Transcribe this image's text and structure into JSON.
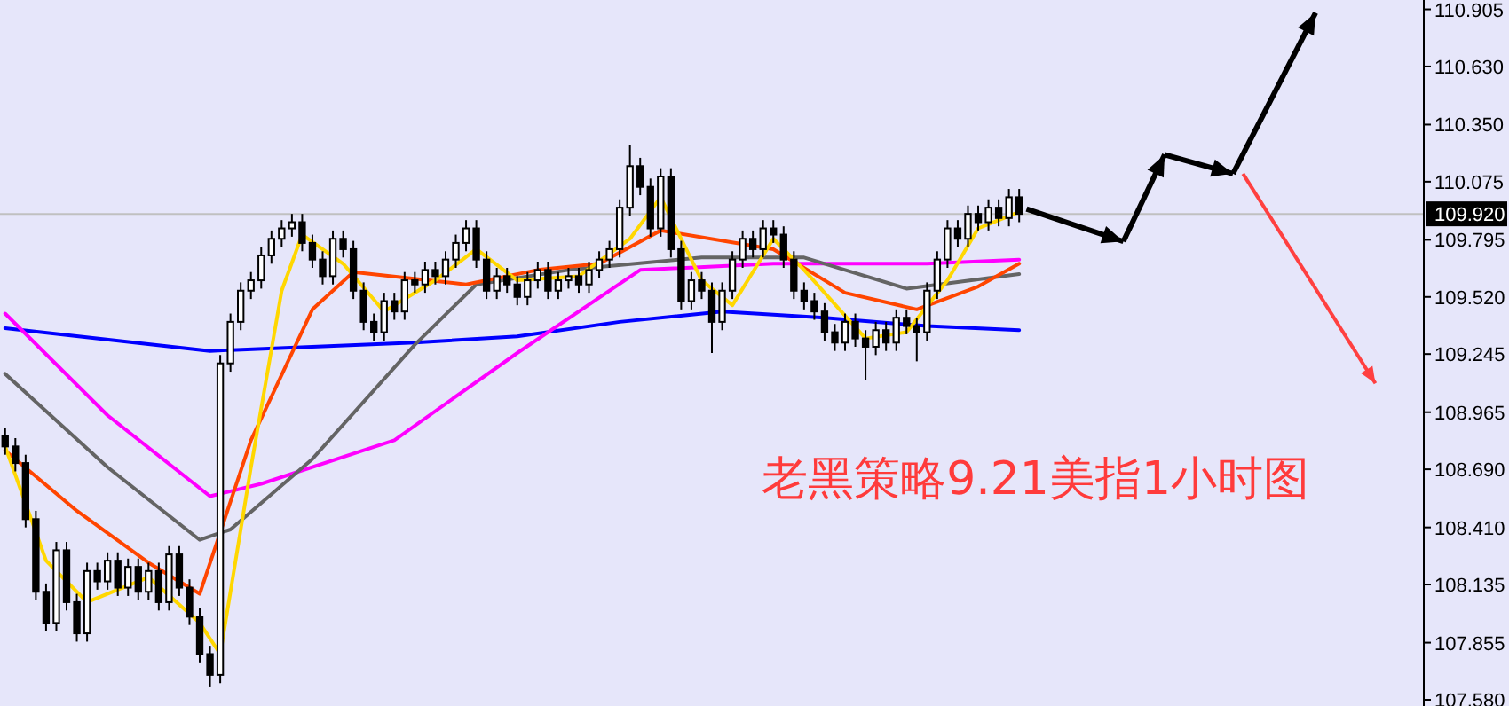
{
  "chart_data": {
    "type": "candlestick",
    "categories": [
      null,
      null,
      null,
      null,
      null,
      null,
      null,
      null,
      null,
      null,
      null,
      null,
      null,
      null,
      null,
      null,
      null,
      null,
      null,
      null,
      null,
      null,
      null,
      null,
      null,
      null,
      null,
      null,
      null,
      null,
      null,
      null,
      null,
      null,
      null,
      null,
      null,
      null,
      null,
      null,
      null,
      null,
      null,
      null,
      null,
      null,
      null,
      null,
      null,
      null,
      null,
      null,
      null,
      null,
      null,
      null,
      null,
      null,
      null,
      null,
      null,
      null,
      null,
      null,
      null,
      null,
      null,
      null,
      null,
      null,
      null,
      null,
      null,
      null,
      null,
      null,
      null,
      null,
      null,
      null,
      null,
      null,
      null,
      null,
      null,
      null,
      null,
      null,
      null,
      null,
      null,
      null,
      null,
      null,
      null,
      null,
      null,
      null,
      null,
      null,
      null,
      null,
      null,
      null,
      null,
      null,
      null,
      null,
      null,
      null,
      null,
      null,
      null,
      null,
      null,
      null,
      null,
      null,
      null,
      null,
      null,
      null,
      null,
      null,
      null,
      null,
      null,
      null,
      null,
      null,
      null,
      null,
      null,
      null,
      null,
      null,
      null,
      null,
      null
    ],
    "ohlc": [
      [
        108.85,
        108.89,
        108.76,
        108.8
      ],
      [
        108.8,
        108.84,
        108.68,
        108.72
      ],
      [
        108.72,
        108.76,
        108.41,
        108.45
      ],
      [
        108.45,
        108.49,
        108.06,
        108.1
      ],
      [
        108.1,
        108.14,
        107.91,
        107.95
      ],
      [
        107.95,
        108.34,
        107.91,
        108.3
      ],
      [
        108.3,
        108.34,
        108.01,
        108.05
      ],
      [
        108.05,
        108.09,
        107.86,
        107.9
      ],
      [
        107.9,
        108.24,
        107.86,
        108.2
      ],
      [
        108.2,
        108.24,
        108.11,
        108.15
      ],
      [
        108.15,
        108.29,
        108.11,
        108.25
      ],
      [
        108.25,
        108.29,
        108.08,
        108.12
      ],
      [
        108.12,
        108.26,
        108.08,
        108.22
      ],
      [
        108.22,
        108.26,
        108.06,
        108.1
      ],
      [
        108.1,
        108.24,
        108.06,
        108.2
      ],
      [
        108.2,
        108.24,
        108.01,
        108.05
      ],
      [
        108.05,
        108.32,
        108.01,
        108.28
      ],
      [
        108.28,
        108.32,
        108.08,
        108.12
      ],
      [
        108.12,
        108.16,
        107.94,
        107.98
      ],
      [
        107.98,
        108.02,
        107.76,
        107.8
      ],
      [
        107.8,
        107.84,
        107.64,
        107.7
      ],
      [
        107.7,
        109.24,
        107.66,
        109.2
      ],
      [
        109.2,
        109.44,
        109.16,
        109.4
      ],
      [
        109.4,
        109.59,
        109.36,
        109.55
      ],
      [
        109.55,
        109.64,
        109.51,
        109.6
      ],
      [
        109.6,
        109.76,
        109.56,
        109.72
      ],
      [
        109.72,
        109.84,
        109.68,
        109.8
      ],
      [
        109.8,
        109.89,
        109.76,
        109.85
      ],
      [
        109.85,
        109.92,
        109.81,
        109.88
      ],
      [
        109.88,
        109.92,
        109.74,
        109.78
      ],
      [
        109.78,
        109.82,
        109.66,
        109.7
      ],
      [
        109.7,
        109.74,
        109.58,
        109.62
      ],
      [
        109.62,
        109.84,
        109.58,
        109.8
      ],
      [
        109.8,
        109.84,
        109.71,
        109.75
      ],
      [
        109.75,
        109.79,
        109.51,
        109.55
      ],
      [
        109.55,
        109.59,
        109.36,
        109.4
      ],
      [
        109.4,
        109.44,
        109.31,
        109.35
      ],
      [
        109.35,
        109.54,
        109.31,
        109.5
      ],
      [
        109.5,
        109.54,
        109.41,
        109.45
      ],
      [
        109.45,
        109.64,
        109.41,
        109.6
      ],
      [
        109.6,
        109.64,
        109.54,
        109.58
      ],
      [
        109.58,
        109.69,
        109.54,
        109.65
      ],
      [
        109.65,
        109.69,
        109.58,
        109.62
      ],
      [
        109.62,
        109.74,
        109.58,
        109.7
      ],
      [
        109.7,
        109.82,
        109.66,
        109.78
      ],
      [
        109.78,
        109.89,
        109.74,
        109.85
      ],
      [
        109.85,
        109.89,
        109.66,
        109.7
      ],
      [
        109.7,
        109.74,
        109.51,
        109.55
      ],
      [
        109.55,
        109.66,
        109.51,
        109.62
      ],
      [
        109.62,
        109.66,
        109.54,
        109.58
      ],
      [
        109.58,
        109.62,
        109.48,
        109.52
      ],
      [
        109.52,
        109.64,
        109.48,
        109.6
      ],
      [
        109.6,
        109.69,
        109.56,
        109.65
      ],
      [
        109.65,
        109.69,
        109.51,
        109.55
      ],
      [
        109.55,
        109.64,
        109.51,
        109.6
      ],
      [
        109.6,
        109.66,
        109.56,
        109.62
      ],
      [
        109.62,
        109.66,
        109.54,
        109.58
      ],
      [
        109.58,
        109.69,
        109.54,
        109.65
      ],
      [
        109.65,
        109.74,
        109.61,
        109.7
      ],
      [
        109.7,
        109.79,
        109.66,
        109.75
      ],
      [
        109.75,
        109.99,
        109.71,
        109.95
      ],
      [
        109.95,
        110.25,
        109.91,
        110.15
      ],
      [
        110.15,
        110.19,
        110.01,
        110.05
      ],
      [
        110.05,
        110.09,
        109.81,
        109.85
      ],
      [
        109.85,
        110.14,
        109.81,
        110.1
      ],
      [
        110.1,
        110.14,
        109.71,
        109.75
      ],
      [
        109.75,
        109.79,
        109.46,
        109.5
      ],
      [
        109.5,
        109.64,
        109.46,
        109.6
      ],
      [
        109.6,
        109.64,
        109.51,
        109.55
      ],
      [
        109.55,
        109.59,
        109.25,
        109.4
      ],
      [
        109.4,
        109.59,
        109.36,
        109.55
      ],
      [
        109.55,
        109.74,
        109.51,
        109.7
      ],
      [
        109.7,
        109.84,
        109.66,
        109.8
      ],
      [
        109.8,
        109.84,
        109.71,
        109.75
      ],
      [
        109.75,
        109.89,
        109.71,
        109.85
      ],
      [
        109.85,
        109.89,
        109.78,
        109.82
      ],
      [
        109.82,
        109.86,
        109.66,
        109.7
      ],
      [
        109.7,
        109.74,
        109.51,
        109.55
      ],
      [
        109.55,
        109.59,
        109.46,
        109.5
      ],
      [
        109.5,
        109.54,
        109.41,
        109.45
      ],
      [
        109.45,
        109.49,
        109.31,
        109.35
      ],
      [
        109.35,
        109.39,
        109.26,
        109.3
      ],
      [
        109.3,
        109.44,
        109.26,
        109.4
      ],
      [
        109.4,
        109.44,
        109.28,
        109.32
      ],
      [
        109.32,
        109.36,
        109.12,
        109.28
      ],
      [
        109.28,
        109.4,
        109.24,
        109.36
      ],
      [
        109.36,
        109.4,
        109.26,
        109.3
      ],
      [
        109.3,
        109.46,
        109.26,
        109.42
      ],
      [
        109.42,
        109.46,
        109.34,
        109.38
      ],
      [
        109.38,
        109.42,
        109.21,
        109.35
      ],
      [
        109.35,
        109.59,
        109.31,
        109.55
      ],
      [
        109.55,
        109.74,
        109.51,
        109.7
      ],
      [
        109.7,
        109.89,
        109.66,
        109.85
      ],
      [
        109.85,
        109.89,
        109.76,
        109.8
      ],
      [
        109.8,
        109.96,
        109.76,
        109.92
      ],
      [
        109.92,
        109.96,
        109.84,
        109.88
      ],
      [
        109.88,
        109.99,
        109.84,
        109.95
      ],
      [
        109.95,
        109.99,
        109.86,
        109.9
      ],
      [
        109.9,
        110.04,
        109.86,
        110.0
      ],
      [
        110.0,
        110.04,
        109.88,
        109.92
      ],
      null,
      null,
      null,
      null,
      null,
      null,
      null,
      null,
      null,
      null,
      null,
      null,
      null,
      null,
      null,
      null,
      null,
      null,
      null,
      null,
      null,
      null,
      null,
      null,
      null,
      null,
      null,
      null,
      null,
      null,
      null,
      null,
      null,
      null,
      null,
      null,
      null,
      null,
      null
    ],
    "series": [
      {
        "type": "line",
        "color": "#0000ff",
        "values": [
          109.37,
          null,
          null,
          null,
          null,
          null,
          null,
          null,
          null,
          null,
          null,
          null,
          null,
          null,
          null,
          null,
          null,
          null,
          null,
          null,
          109.26,
          null,
          null,
          null,
          null,
          null,
          null,
          null,
          null,
          null,
          null,
          null,
          null,
          null,
          null,
          null,
          null,
          null,
          null,
          null,
          109.3,
          null,
          null,
          null,
          null,
          null,
          null,
          null,
          null,
          null,
          109.33,
          null,
          null,
          null,
          null,
          null,
          null,
          null,
          null,
          null,
          109.4,
          null,
          null,
          null,
          null,
          null,
          null,
          null,
          null,
          null,
          109.45,
          null,
          null,
          null,
          null,
          null,
          null,
          null,
          null,
          null,
          109.42,
          null,
          null,
          null,
          null,
          null,
          null,
          null,
          null,
          null,
          109.38,
          null,
          null,
          null,
          null,
          null,
          null,
          null,
          null,
          109.36,
          null,
          null,
          null,
          null,
          null,
          null,
          null,
          null,
          null,
          null,
          null,
          null,
          null,
          null,
          null,
          null,
          null,
          null,
          null,
          null,
          null,
          null,
          null,
          null,
          null,
          null,
          null,
          null,
          null,
          null,
          null,
          null,
          null,
          null,
          null,
          null,
          null,
          null,
          null
        ]
      },
      {
        "type": "line",
        "color": "#ff00ff",
        "values": [
          109.44,
          null,
          null,
          null,
          null,
          null,
          null,
          null,
          null,
          null,
          108.95,
          null,
          null,
          null,
          null,
          null,
          null,
          null,
          null,
          null,
          108.56,
          null,
          null,
          null,
          null,
          108.62,
          null,
          null,
          null,
          null,
          null,
          null,
          null,
          null,
          null,
          null,
          null,
          null,
          108.83,
          null,
          null,
          null,
          null,
          null,
          null,
          null,
          null,
          null,
          null,
          null,
          109.25,
          null,
          null,
          null,
          null,
          null,
          null,
          null,
          null,
          null,
          null,
          null,
          109.65,
          null,
          null,
          null,
          null,
          null,
          null,
          null,
          null,
          null,
          null,
          null,
          null,
          109.68,
          null,
          null,
          null,
          null,
          null,
          null,
          null,
          null,
          null,
          null,
          null,
          null,
          null,
          null,
          109.68,
          null,
          null,
          null,
          null,
          null,
          null,
          null,
          null,
          109.7,
          null,
          null,
          null,
          null,
          null,
          null,
          null,
          null,
          null,
          null,
          null,
          null,
          null,
          null,
          null,
          null,
          null,
          null,
          null,
          null,
          null,
          null,
          null,
          null,
          null,
          null,
          null,
          null,
          null,
          null,
          null,
          null,
          null,
          null,
          null,
          null,
          null,
          null,
          null
        ]
      },
      {
        "type": "line",
        "color": "#646464",
        "values": [
          109.15,
          null,
          null,
          null,
          null,
          null,
          null,
          null,
          null,
          null,
          108.7,
          null,
          null,
          null,
          null,
          null,
          null,
          null,
          null,
          108.35,
          null,
          null,
          108.4,
          null,
          null,
          null,
          null,
          null,
          null,
          null,
          108.74,
          null,
          null,
          null,
          null,
          null,
          null,
          null,
          null,
          null,
          109.29,
          null,
          null,
          null,
          null,
          null,
          109.58,
          null,
          null,
          null,
          null,
          null,
          null,
          null,
          null,
          109.65,
          null,
          null,
          null,
          null,
          null,
          null,
          null,
          null,
          null,
          null,
          null,
          null,
          109.71,
          null,
          null,
          null,
          null,
          null,
          null,
          null,
          null,
          null,
          109.71,
          null,
          null,
          null,
          null,
          null,
          null,
          null,
          null,
          null,
          109.56,
          null,
          null,
          null,
          null,
          null,
          null,
          null,
          null,
          null,
          null,
          109.63,
          null,
          null,
          null,
          null,
          null,
          null,
          null,
          null,
          null,
          null,
          null,
          null,
          null,
          null,
          null,
          null,
          null,
          null,
          null,
          null,
          null,
          null,
          null,
          null,
          null,
          null,
          null,
          null,
          null,
          null,
          null,
          null,
          null,
          null,
          null,
          null,
          null,
          null,
          null
        ]
      },
      {
        "type": "line",
        "color": "#ff4500",
        "values": [
          108.78,
          null,
          null,
          null,
          null,
          null,
          null,
          108.49,
          null,
          null,
          null,
          null,
          null,
          null,
          108.24,
          null,
          null,
          null,
          null,
          108.09,
          null,
          null,
          null,
          null,
          108.83,
          null,
          null,
          null,
          null,
          null,
          109.46,
          null,
          null,
          null,
          109.64,
          null,
          null,
          null,
          null,
          null,
          null,
          null,
          null,
          null,
          null,
          109.58,
          null,
          null,
          null,
          null,
          null,
          null,
          109.65,
          null,
          null,
          null,
          null,
          null,
          109.68,
          null,
          null,
          null,
          null,
          null,
          109.84,
          null,
          null,
          null,
          null,
          null,
          null,
          null,
          null,
          null,
          null,
          109.75,
          null,
          null,
          null,
          null,
          null,
          null,
          109.54,
          null,
          null,
          null,
          null,
          null,
          null,
          109.46,
          null,
          null,
          null,
          null,
          null,
          109.57,
          null,
          null,
          null,
          109.68,
          null,
          null,
          null,
          null,
          null,
          null,
          null,
          null,
          null,
          null,
          null,
          null,
          null,
          null,
          null,
          null,
          null,
          null,
          null,
          null,
          null,
          null,
          null,
          null,
          null,
          null,
          null,
          null,
          null,
          null,
          null,
          null,
          null,
          null,
          null,
          null,
          null,
          null,
          null
        ]
      },
      {
        "type": "line",
        "color": "#ffd700",
        "values": [
          108.8,
          null,
          null,
          null,
          108.25,
          null,
          null,
          null,
          108.05,
          null,
          null,
          null,
          null,
          null,
          108.17,
          null,
          null,
          null,
          null,
          107.95,
          null,
          107.8,
          null,
          null,
          108.7,
          null,
          null,
          109.55,
          null,
          109.82,
          null,
          null,
          null,
          109.68,
          null,
          null,
          null,
          109.45,
          null,
          null,
          null,
          null,
          109.6,
          null,
          null,
          null,
          109.75,
          null,
          null,
          null,
          109.6,
          null,
          null,
          null,
          null,
          null,
          109.62,
          null,
          null,
          null,
          null,
          109.8,
          null,
          null,
          110.0,
          null,
          null,
          null,
          109.6,
          null,
          null,
          109.48,
          null,
          null,
          null,
          109.8,
          null,
          null,
          109.65,
          null,
          null,
          null,
          null,
          null,
          109.32,
          null,
          null,
          null,
          109.35,
          null,
          null,
          null,
          109.6,
          null,
          null,
          109.85,
          null,
          null,
          null,
          109.93,
          null,
          null,
          null,
          null,
          null,
          null,
          null,
          null,
          null,
          null,
          null,
          null,
          null,
          null,
          null,
          null,
          null,
          null,
          null,
          null,
          null,
          null,
          null,
          null,
          null,
          null,
          null,
          null,
          null,
          null,
          null,
          null,
          null,
          null,
          null,
          null,
          null,
          null,
          null
        ]
      }
    ],
    "ylim": [
      107.55,
      110.95
    ],
    "yticks": [
      {
        "value": 107.58,
        "label": "107.580"
      },
      {
        "value": 107.855,
        "label": "107.855"
      },
      {
        "value": 108.135,
        "label": "108.135"
      },
      {
        "value": 108.41,
        "label": "108.410"
      },
      {
        "value": 108.69,
        "label": "108.690"
      },
      {
        "value": 108.965,
        "label": "108.965"
      },
      {
        "value": 109.245,
        "label": "109.245"
      },
      {
        "value": 109.52,
        "label": "109.520"
      },
      {
        "value": 109.795,
        "label": "109.795"
      },
      {
        "value": 110.075,
        "label": "110.075"
      },
      {
        "value": 110.35,
        "label": "110.350"
      },
      {
        "value": 110.63,
        "label": "110.630"
      },
      {
        "value": 110.905,
        "label": "110.905"
      }
    ],
    "ref_lines": [
      {
        "axis": "y",
        "value": 109.92,
        "label": "109.920",
        "color": "#c0c0c0"
      }
    ],
    "annotations": [
      "老黑策略9.21美指1小时图"
    ],
    "grid": false,
    "tick_labels": "y"
  }
}
